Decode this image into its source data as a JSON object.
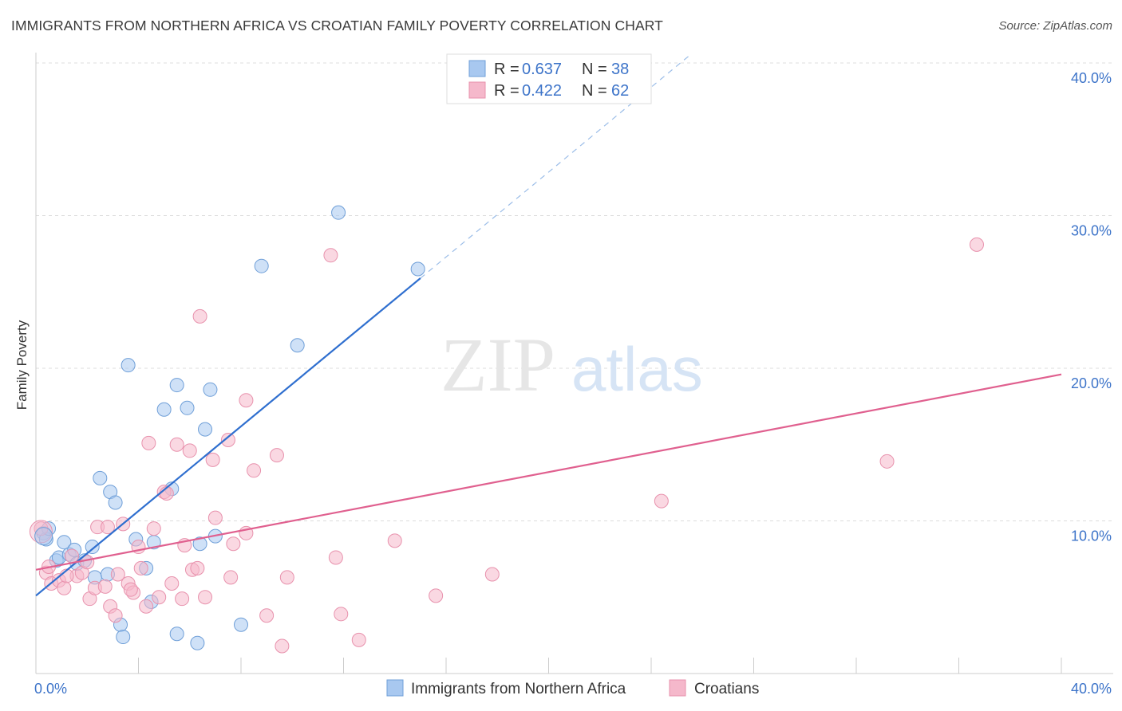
{
  "title": "IMMIGRANTS FROM NORTHERN AFRICA VS CROATIAN FAMILY POVERTY CORRELATION CHART",
  "source": "Source: ZipAtlas.com",
  "watermark": {
    "part1": "ZIP",
    "part2": "atlas"
  },
  "legend_top": [
    {
      "r_label": "R =",
      "r_value": "0.637",
      "n_label": "N =",
      "n_value": "38",
      "color": "#a8c8f0"
    },
    {
      "r_label": "R =",
      "r_value": "0.422",
      "n_label": "N =",
      "n_value": "62",
      "color": "#f5b8cb"
    }
  ],
  "legend_bottom": [
    "Immigrants from Northern Africa",
    "Croatians"
  ],
  "chart_data": {
    "type": "scatter",
    "ylabel": "Family Poverty",
    "xlim": [
      0,
      40
    ],
    "ylim": [
      0,
      40
    ],
    "x_tick_labels": [
      "0.0%",
      "40.0%"
    ],
    "y_tick_labels": [
      "10.0%",
      "20.0%",
      "30.0%",
      "40.0%"
    ],
    "y_ticks": [
      10,
      20,
      30,
      40
    ],
    "series": [
      {
        "name": "Immigrants from Northern Africa",
        "color": "#a8c8f0",
        "stroke": "#6f9fd8",
        "line_color": "#2f6fcf",
        "trend": {
          "x": [
            0,
            15
          ],
          "y": [
            5.1,
            25.9
          ]
        },
        "trend_ext": {
          "x": [
            15,
            25.5
          ],
          "y": [
            25.9,
            40.5
          ]
        },
        "points": [
          {
            "x": 0.3,
            "y": 9.2
          },
          {
            "x": 0.4,
            "y": 8.8
          },
          {
            "x": 0.5,
            "y": 9.5
          },
          {
            "x": 0.8,
            "y": 7.4
          },
          {
            "x": 0.9,
            "y": 7.6
          },
          {
            "x": 1.1,
            "y": 8.6
          },
          {
            "x": 1.3,
            "y": 7.8
          },
          {
            "x": 1.5,
            "y": 8.1
          },
          {
            "x": 1.6,
            "y": 7.2
          },
          {
            "x": 1.9,
            "y": 7.4
          },
          {
            "x": 2.2,
            "y": 8.3
          },
          {
            "x": 2.3,
            "y": 6.3
          },
          {
            "x": 2.5,
            "y": 12.8
          },
          {
            "x": 2.8,
            "y": 6.5
          },
          {
            "x": 2.9,
            "y": 11.9
          },
          {
            "x": 3.1,
            "y": 11.2
          },
          {
            "x": 3.3,
            "y": 3.2
          },
          {
            "x": 3.4,
            "y": 2.4
          },
          {
            "x": 3.6,
            "y": 20.2
          },
          {
            "x": 3.9,
            "y": 8.8
          },
          {
            "x": 4.3,
            "y": 6.9
          },
          {
            "x": 4.5,
            "y": 4.7
          },
          {
            "x": 4.6,
            "y": 8.6
          },
          {
            "x": 5.0,
            "y": 17.3
          },
          {
            "x": 5.3,
            "y": 12.1
          },
          {
            "x": 5.5,
            "y": 18.9
          },
          {
            "x": 5.5,
            "y": 2.6
          },
          {
            "x": 5.9,
            "y": 17.4
          },
          {
            "x": 6.3,
            "y": 2.0
          },
          {
            "x": 6.4,
            "y": 8.5
          },
          {
            "x": 6.6,
            "y": 16.0
          },
          {
            "x": 6.8,
            "y": 18.6
          },
          {
            "x": 7.0,
            "y": 9.0
          },
          {
            "x": 8.0,
            "y": 3.2
          },
          {
            "x": 8.8,
            "y": 26.7
          },
          {
            "x": 10.2,
            "y": 21.5
          },
          {
            "x": 11.8,
            "y": 30.2
          },
          {
            "x": 14.9,
            "y": 26.5
          }
        ]
      },
      {
        "name": "Croatians",
        "color": "#f5b8cb",
        "stroke": "#e892ad",
        "line_color": "#e0608f",
        "trend": {
          "x": [
            0,
            40
          ],
          "y": [
            6.8,
            19.6
          ]
        },
        "points": [
          {
            "x": 0.2,
            "y": 9.5
          },
          {
            "x": 0.4,
            "y": 6.6
          },
          {
            "x": 0.6,
            "y": 5.9
          },
          {
            "x": 0.9,
            "y": 6.1
          },
          {
            "x": 1.1,
            "y": 5.6
          },
          {
            "x": 1.4,
            "y": 7.7
          },
          {
            "x": 1.6,
            "y": 6.4
          },
          {
            "x": 1.8,
            "y": 6.6
          },
          {
            "x": 2.1,
            "y": 4.9
          },
          {
            "x": 2.3,
            "y": 5.6
          },
          {
            "x": 2.4,
            "y": 9.6
          },
          {
            "x": 2.7,
            "y": 5.7
          },
          {
            "x": 2.8,
            "y": 9.6
          },
          {
            "x": 2.9,
            "y": 4.4
          },
          {
            "x": 3.1,
            "y": 3.8
          },
          {
            "x": 3.2,
            "y": 6.5
          },
          {
            "x": 3.4,
            "y": 9.8
          },
          {
            "x": 3.6,
            "y": 5.9
          },
          {
            "x": 3.8,
            "y": 5.3
          },
          {
            "x": 4.0,
            "y": 8.3
          },
          {
            "x": 4.1,
            "y": 6.9
          },
          {
            "x": 4.3,
            "y": 4.4
          },
          {
            "x": 4.4,
            "y": 15.1
          },
          {
            "x": 4.6,
            "y": 9.5
          },
          {
            "x": 4.8,
            "y": 5.0
          },
          {
            "x": 5.0,
            "y": 11.9
          },
          {
            "x": 5.3,
            "y": 5.9
          },
          {
            "x": 5.5,
            "y": 15.0
          },
          {
            "x": 5.7,
            "y": 4.9
          },
          {
            "x": 5.8,
            "y": 8.4
          },
          {
            "x": 6.0,
            "y": 14.6
          },
          {
            "x": 6.1,
            "y": 6.8
          },
          {
            "x": 6.3,
            "y": 6.9
          },
          {
            "x": 6.4,
            "y": 23.4
          },
          {
            "x": 6.6,
            "y": 5.0
          },
          {
            "x": 6.9,
            "y": 14.0
          },
          {
            "x": 7.0,
            "y": 10.2
          },
          {
            "x": 7.5,
            "y": 15.3
          },
          {
            "x": 7.6,
            "y": 6.3
          },
          {
            "x": 7.7,
            "y": 8.5
          },
          {
            "x": 8.2,
            "y": 9.2
          },
          {
            "x": 8.2,
            "y": 17.9
          },
          {
            "x": 8.5,
            "y": 13.3
          },
          {
            "x": 9.0,
            "y": 3.8
          },
          {
            "x": 9.4,
            "y": 14.3
          },
          {
            "x": 9.6,
            "y": 1.8
          },
          {
            "x": 9.8,
            "y": 6.3
          },
          {
            "x": 11.5,
            "y": 27.4
          },
          {
            "x": 11.7,
            "y": 7.6
          },
          {
            "x": 11.9,
            "y": 3.9
          },
          {
            "x": 12.6,
            "y": 2.2
          },
          {
            "x": 14.0,
            "y": 8.7
          },
          {
            "x": 15.6,
            "y": 5.1
          },
          {
            "x": 17.8,
            "y": 6.5
          },
          {
            "x": 24.4,
            "y": 11.3
          },
          {
            "x": 33.2,
            "y": 13.9
          },
          {
            "x": 36.7,
            "y": 28.1
          },
          {
            "x": 0.5,
            "y": 7.0
          },
          {
            "x": 1.2,
            "y": 6.4
          },
          {
            "x": 2.0,
            "y": 7.3
          },
          {
            "x": 5.1,
            "y": 11.8
          },
          {
            "x": 3.7,
            "y": 5.5
          }
        ]
      }
    ]
  }
}
